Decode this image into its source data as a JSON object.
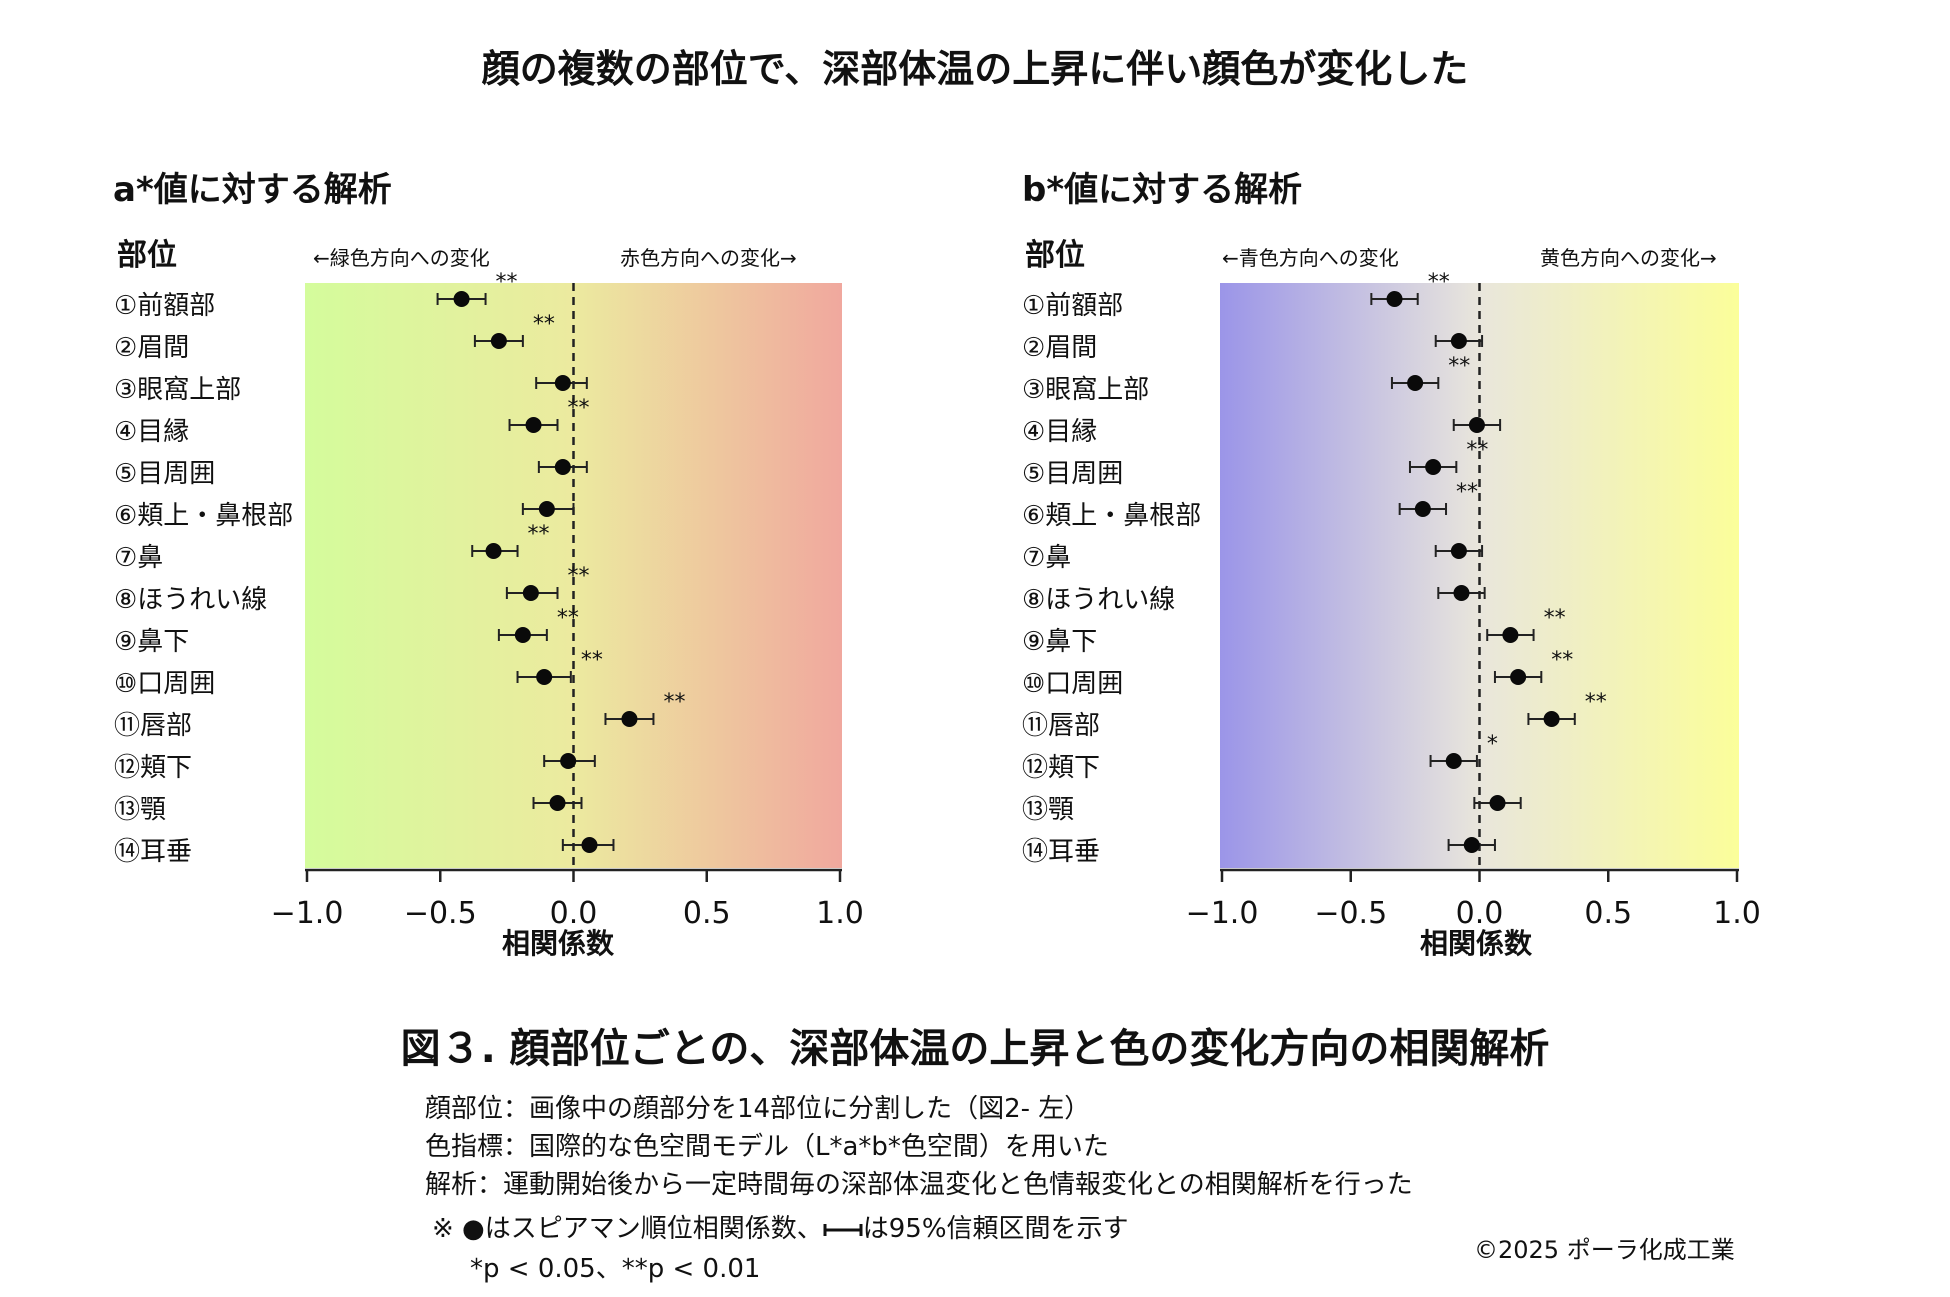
{
  "header": {
    "title": "顔の複数の部位で、深部体温の上昇に伴い顔色が変化した"
  },
  "region_heading": "部位",
  "regions": [
    "①前額部",
    "②眉間",
    "③眼窩上部",
    "④目縁",
    "⑤目周囲",
    "⑥頬上・鼻根部",
    "⑦鼻",
    "⑧ほうれい線",
    "⑨鼻下",
    "⑩口周囲",
    "⑪唇部",
    "⑫頬下",
    "⑬顎",
    "⑭耳垂"
  ],
  "colors": {
    "green": "#d4fc9c",
    "red": "#f0a89e",
    "blue": "#9b95e8",
    "yellow": "#fbfe9a",
    "mid_a": "#ecea9f",
    "mid_b": "#e9e6dc"
  },
  "chart_data": [
    {
      "type": "scatter",
      "title": "a*値に対する解析",
      "left_direction": "←緑色方向への変化",
      "right_direction": "赤色方向への変化→",
      "xlabel": "相関係数",
      "xlim": [
        -1.0,
        1.0
      ],
      "xticks": [
        "−1.0",
        "−0.5",
        "0.0",
        "0.5",
        "1.0"
      ],
      "categories": [
        "①前額部",
        "②眉間",
        "③眼窩上部",
        "④目縁",
        "⑤目周囲",
        "⑥頬上・鼻根部",
        "⑦鼻",
        "⑧ほうれい線",
        "⑨鼻下",
        "⑩口周囲",
        "⑪唇部",
        "⑫頬下",
        "⑬顎",
        "⑭耳垂"
      ],
      "values": [
        -0.42,
        -0.28,
        -0.04,
        -0.15,
        -0.04,
        -0.1,
        -0.3,
        -0.16,
        -0.19,
        -0.11,
        0.21,
        -0.02,
        -0.06,
        0.06
      ],
      "ci_low": [
        -0.51,
        -0.37,
        -0.14,
        -0.24,
        -0.13,
        -0.19,
        -0.38,
        -0.25,
        -0.28,
        -0.21,
        0.12,
        -0.11,
        -0.15,
        -0.04
      ],
      "ci_high": [
        -0.33,
        -0.19,
        0.05,
        -0.06,
        0.05,
        0.0,
        -0.21,
        -0.06,
        -0.1,
        -0.01,
        0.3,
        0.08,
        0.03,
        0.15
      ],
      "significance": [
        "**",
        "**",
        "",
        "**",
        "",
        "",
        "**",
        "**",
        "**",
        "**",
        "**",
        "",
        "",
        ""
      ]
    },
    {
      "type": "scatter",
      "title": "b*値に対する解析",
      "left_direction": "←青色方向への変化",
      "right_direction": "黄色方向への変化→",
      "xlabel": "相関係数",
      "xlim": [
        -1.0,
        1.0
      ],
      "xticks": [
        "−1.0",
        "−0.5",
        "0.0",
        "0.5",
        "1.0"
      ],
      "categories": [
        "①前額部",
        "②眉間",
        "③眼窩上部",
        "④目縁",
        "⑤目周囲",
        "⑥頬上・鼻根部",
        "⑦鼻",
        "⑧ほうれい線",
        "⑨鼻下",
        "⑩口周囲",
        "⑪唇部",
        "⑫頬下",
        "⑬顎",
        "⑭耳垂"
      ],
      "values": [
        -0.33,
        -0.08,
        -0.25,
        -0.01,
        -0.18,
        -0.22,
        -0.08,
        -0.07,
        0.12,
        0.15,
        0.28,
        -0.1,
        0.07,
        -0.03
      ],
      "ci_low": [
        -0.42,
        -0.17,
        -0.34,
        -0.1,
        -0.27,
        -0.31,
        -0.17,
        -0.16,
        0.03,
        0.06,
        0.19,
        -0.19,
        -0.02,
        -0.12
      ],
      "ci_high": [
        -0.24,
        0.01,
        -0.16,
        0.08,
        -0.09,
        -0.13,
        0.01,
        0.02,
        0.21,
        0.24,
        0.37,
        -0.01,
        0.16,
        0.06
      ],
      "significance": [
        "**",
        "",
        "**",
        "",
        "**",
        "**",
        "",
        "",
        "**",
        "**",
        "**",
        "*",
        "",
        ""
      ]
    }
  ],
  "figure": {
    "caption": "図３. 顔部位ごとの、深部体温の上昇と色の変化方向の相関解析",
    "notes": [
      "顔部位：画像中の顔部分を14部位に分割した（図2- 左）",
      "色指標：国際的な色空間モデル（L*a*b*色空間）を用いた",
      "解析：運動開始後から一定時間毎の深部体温変化と色情報変化との相関解析を行った"
    ],
    "legend_prefix": "※ ●はスピアマン順位相関係数、",
    "legend_suffix": "は95%信頼区間を示す",
    "significance_note": "*p < 0.05、**p < 0.01",
    "copyright": "©2025 ポーラ化成工業"
  }
}
